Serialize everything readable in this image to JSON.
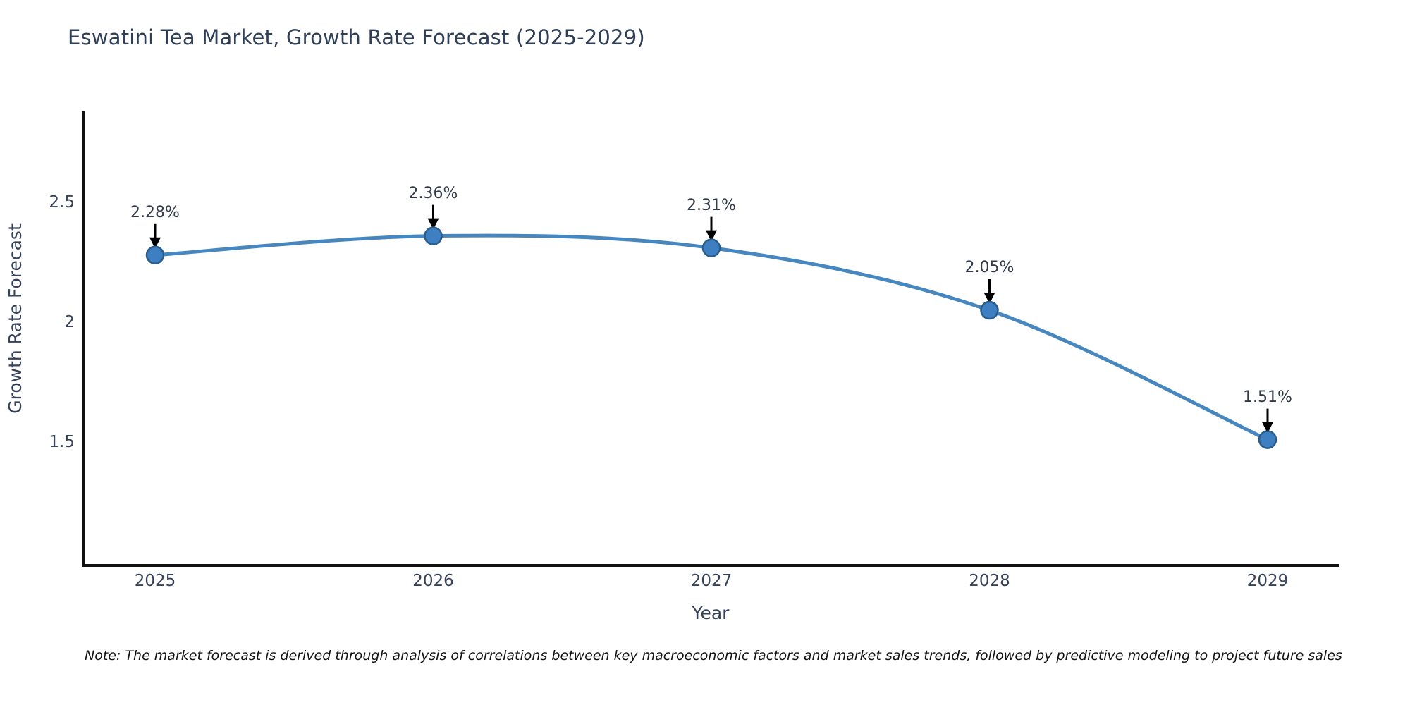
{
  "chart_data": {
    "type": "line",
    "title": "Eswatini Tea Market, Growth Rate Forecast (2025-2029)",
    "xlabel": "Year",
    "ylabel": "Growth Rate Forecast",
    "x": [
      2025,
      2026,
      2027,
      2028,
      2029
    ],
    "values": [
      2.28,
      2.36,
      2.31,
      2.05,
      1.51
    ],
    "point_labels": [
      "2.28%",
      "2.36%",
      "2.31%",
      "2.05%",
      "1.51%"
    ],
    "x_tick_labels": [
      "2025",
      "2026",
      "2027",
      "2028",
      "2029"
    ],
    "y_ticks": {
      "values": [
        2.5,
        2.0,
        1.5
      ],
      "labels": [
        "2.5",
        "2",
        "1.5"
      ]
    },
    "xlim": [
      2024.74,
      2029.26
    ],
    "ylim": [
      0.99,
      2.88
    ],
    "grid": false,
    "legend": false,
    "colors": {
      "line": "#4787bf",
      "marker_fill": "#3d7fc1",
      "marker_edge": "#2a5d8c",
      "annotation_arrow": "#000000",
      "axis_spine": "#111111",
      "title_text": "#2e3f57",
      "tick_text": "#36425a",
      "point_label_text": "#333a49"
    },
    "note": "Note: The market forecast is derived through analysis of correlations between key macroeconomic factors and market sales trends, followed by predictive modeling to project future sales"
  }
}
